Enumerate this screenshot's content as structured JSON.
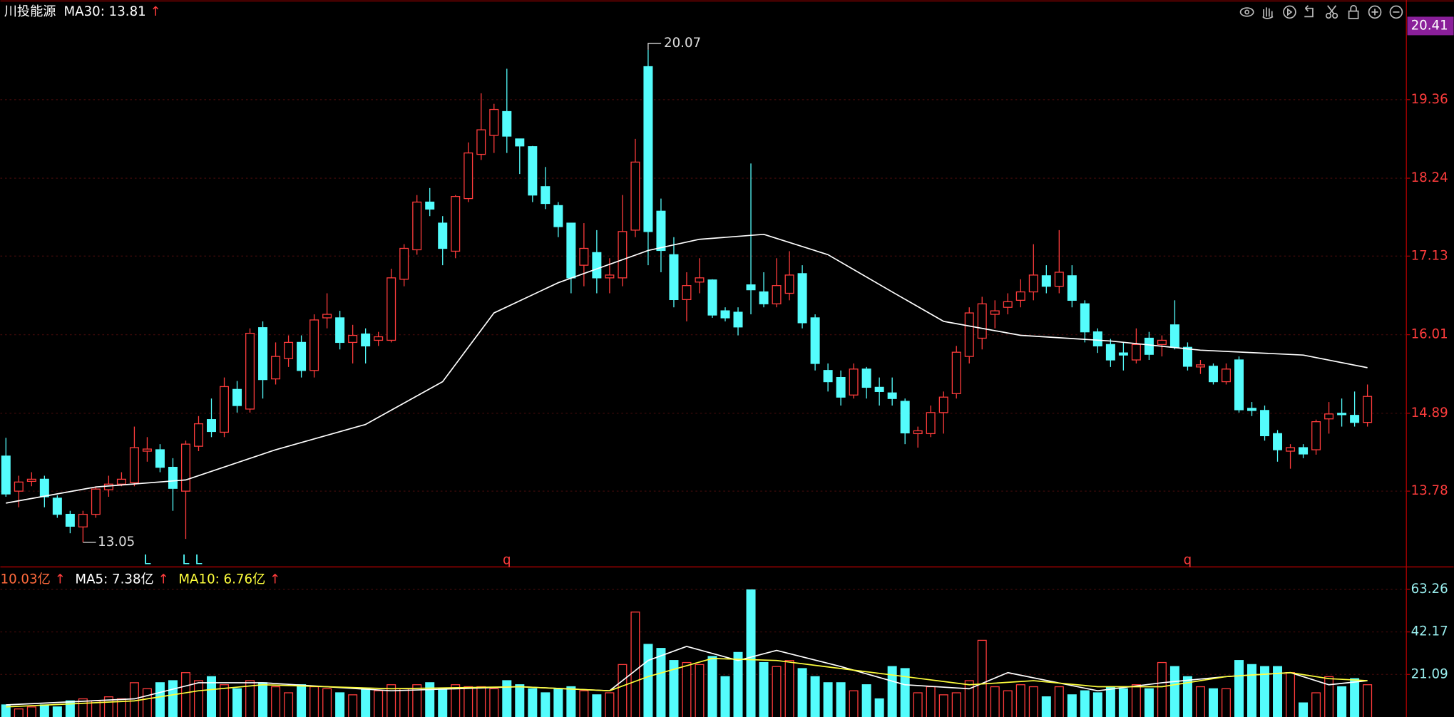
{
  "chart_data": [
    {
      "type": "candlestick",
      "title": "川投能源",
      "arrow": "↑",
      "up_color": "#ff3c3c",
      "down_color": "#54fcfc",
      "ylim": [
        12.7,
        20.78
      ],
      "yticks": [
        13.78,
        14.89,
        16.01,
        17.13,
        18.24,
        19.36
      ],
      "highlight_tick": 20.41,
      "grid": true,
      "ohlc": [
        [
          14.28,
          14.54,
          13.7,
          13.74
        ],
        [
          13.78,
          14.0,
          13.55,
          13.91
        ],
        [
          13.92,
          14.05,
          13.85,
          13.95
        ],
        [
          13.95,
          14.0,
          13.55,
          13.7
        ],
        [
          13.68,
          13.72,
          13.4,
          13.45
        ],
        [
          13.45,
          13.5,
          13.18,
          13.28
        ],
        [
          13.27,
          13.5,
          13.05,
          13.45
        ],
        [
          13.45,
          13.85,
          13.4,
          13.81
        ],
        [
          13.8,
          14.0,
          13.7,
          13.88
        ],
        [
          13.88,
          14.05,
          13.85,
          13.95
        ],
        [
          13.9,
          14.7,
          13.85,
          14.4
        ],
        [
          14.35,
          14.55,
          14.2,
          14.38
        ],
        [
          14.37,
          14.45,
          14.05,
          14.12
        ],
        [
          14.12,
          14.25,
          13.5,
          13.82
        ],
        [
          13.78,
          14.5,
          13.1,
          14.45
        ],
        [
          14.42,
          14.85,
          14.35,
          14.74
        ],
        [
          14.8,
          15.1,
          14.55,
          14.63
        ],
        [
          14.62,
          15.4,
          14.55,
          15.27
        ],
        [
          15.23,
          15.35,
          14.9,
          15.0
        ],
        [
          14.95,
          16.1,
          14.9,
          16.03
        ],
        [
          16.11,
          16.2,
          15.1,
          15.37
        ],
        [
          15.38,
          15.9,
          15.3,
          15.7
        ],
        [
          15.67,
          16.0,
          15.55,
          15.9
        ],
        [
          15.9,
          16.0,
          15.4,
          15.5
        ],
        [
          15.5,
          16.3,
          15.4,
          16.22
        ],
        [
          16.25,
          16.6,
          16.1,
          16.3
        ],
        [
          16.25,
          16.35,
          15.8,
          15.9
        ],
        [
          15.9,
          16.15,
          15.6,
          16.0
        ],
        [
          16.02,
          16.1,
          15.6,
          15.85
        ],
        [
          15.93,
          16.05,
          15.85,
          15.98
        ],
        [
          15.93,
          16.95,
          15.9,
          16.82
        ],
        [
          16.8,
          17.3,
          16.7,
          17.24
        ],
        [
          17.22,
          18.0,
          17.15,
          17.9
        ],
        [
          17.9,
          18.1,
          17.7,
          17.8
        ],
        [
          17.6,
          17.7,
          17.0,
          17.24
        ],
        [
          17.2,
          18.0,
          17.1,
          17.98
        ],
        [
          17.95,
          18.75,
          17.9,
          18.6
        ],
        [
          18.58,
          19.45,
          18.5,
          18.93
        ],
        [
          18.85,
          19.3,
          18.6,
          19.22
        ],
        [
          19.19,
          19.8,
          18.6,
          18.84
        ],
        [
          18.8,
          18.8,
          18.3,
          18.7
        ],
        [
          18.69,
          18.7,
          17.9,
          18.0
        ],
        [
          18.12,
          18.4,
          17.8,
          17.88
        ],
        [
          17.85,
          17.9,
          17.4,
          17.55
        ],
        [
          17.6,
          17.6,
          16.6,
          16.82
        ],
        [
          17.0,
          17.6,
          16.7,
          17.24
        ],
        [
          17.18,
          17.5,
          16.6,
          16.82
        ],
        [
          16.82,
          17.1,
          16.6,
          16.86
        ],
        [
          16.82,
          18.0,
          16.7,
          17.48
        ],
        [
          17.5,
          18.8,
          17.4,
          18.47
        ],
        [
          19.83,
          20.07,
          17.0,
          17.48
        ],
        [
          17.77,
          17.95,
          16.9,
          17.21
        ],
        [
          17.15,
          17.4,
          16.4,
          16.51
        ],
        [
          16.51,
          16.9,
          16.2,
          16.71
        ],
        [
          16.76,
          17.1,
          16.6,
          16.82
        ],
        [
          16.79,
          16.8,
          16.25,
          16.29
        ],
        [
          16.35,
          16.4,
          16.2,
          16.25
        ],
        [
          16.33,
          16.4,
          16.0,
          16.12
        ],
        [
          16.72,
          18.45,
          16.3,
          16.65
        ],
        [
          16.62,
          16.9,
          16.4,
          16.45
        ],
        [
          16.45,
          17.1,
          16.4,
          16.71
        ],
        [
          16.6,
          17.2,
          16.5,
          16.86
        ],
        [
          16.88,
          17.0,
          16.1,
          16.18
        ],
        [
          16.25,
          16.3,
          15.5,
          15.6
        ],
        [
          15.5,
          15.6,
          15.2,
          15.34
        ],
        [
          15.4,
          15.5,
          15.0,
          15.12
        ],
        [
          15.15,
          15.6,
          15.1,
          15.52
        ],
        [
          15.52,
          15.55,
          15.1,
          15.26
        ],
        [
          15.26,
          15.4,
          15.0,
          15.2
        ],
        [
          15.18,
          15.4,
          15.0,
          15.1
        ],
        [
          15.06,
          15.1,
          14.45,
          14.61
        ],
        [
          14.6,
          14.7,
          14.4,
          14.64
        ],
        [
          14.6,
          15.0,
          14.55,
          14.9
        ],
        [
          14.9,
          15.2,
          14.6,
          15.12
        ],
        [
          15.17,
          15.85,
          15.1,
          15.76
        ],
        [
          15.7,
          16.4,
          15.6,
          16.32
        ],
        [
          15.96,
          16.55,
          15.8,
          16.45
        ],
        [
          16.3,
          16.5,
          16.1,
          16.35
        ],
        [
          16.4,
          16.6,
          16.3,
          16.48
        ],
        [
          16.5,
          16.8,
          16.4,
          16.62
        ],
        [
          16.62,
          17.3,
          16.5,
          16.86
        ],
        [
          16.85,
          17.0,
          16.6,
          16.7
        ],
        [
          16.7,
          17.5,
          16.6,
          16.9
        ],
        [
          16.85,
          17.0,
          16.4,
          16.5
        ],
        [
          16.45,
          16.5,
          15.9,
          16.05
        ],
        [
          16.05,
          16.1,
          15.75,
          15.85
        ],
        [
          15.87,
          15.95,
          15.55,
          15.65
        ],
        [
          15.75,
          15.9,
          15.5,
          15.72
        ],
        [
          15.65,
          16.1,
          15.6,
          15.87
        ],
        [
          15.96,
          16.05,
          15.65,
          15.73
        ],
        [
          15.87,
          16.0,
          15.7,
          15.93
        ],
        [
          16.15,
          16.5,
          15.8,
          15.83
        ],
        [
          15.83,
          15.9,
          15.5,
          15.56
        ],
        [
          15.55,
          15.65,
          15.45,
          15.58
        ],
        [
          15.56,
          15.6,
          15.3,
          15.34
        ],
        [
          15.34,
          15.6,
          15.3,
          15.52
        ],
        [
          15.65,
          15.7,
          14.9,
          14.94
        ],
        [
          14.96,
          15.05,
          14.85,
          14.93
        ],
        [
          14.93,
          15.0,
          14.5,
          14.57
        ],
        [
          14.6,
          14.65,
          14.2,
          14.37
        ],
        [
          14.35,
          14.45,
          14.1,
          14.4
        ],
        [
          14.4,
          14.45,
          14.25,
          14.31
        ],
        [
          14.37,
          14.8,
          14.3,
          14.77
        ],
        [
          14.81,
          15.05,
          14.6,
          14.88
        ],
        [
          14.89,
          15.1,
          14.7,
          14.87
        ],
        [
          14.86,
          15.2,
          14.7,
          14.76
        ],
        [
          14.76,
          15.3,
          14.7,
          15.13
        ]
      ],
      "series": [
        {
          "name": "MA30: 13.81",
          "color": "#ffffff",
          "x": [
            0,
            7,
            14,
            21,
            28,
            34,
            38,
            43,
            50,
            54,
            59,
            64,
            69,
            73,
            79,
            86,
            93,
            101,
            106
          ],
          "values": [
            13.61,
            13.84,
            13.94,
            14.37,
            14.73,
            15.34,
            16.32,
            16.75,
            17.21,
            17.37,
            17.44,
            17.15,
            16.62,
            16.2,
            16.0,
            15.92,
            15.79,
            15.72,
            15.54
          ]
        }
      ],
      "signals": [
        {
          "label": "L",
          "index": 11,
          "color": "#54fcfc"
        },
        {
          "label": "L",
          "index": 14,
          "color": "#54fcfc"
        },
        {
          "label": "L",
          "index": 15,
          "color": "#54fcfc"
        },
        {
          "label": "q",
          "index": 39,
          "color": "#ff3c3c"
        },
        {
          "label": "q",
          "index": 92,
          "color": "#ff3c3c"
        }
      ]
    },
    {
      "type": "bar",
      "title": "10.03亿",
      "arrow": "↑",
      "ylim": [
        0,
        73
      ],
      "yticks": [
        21.09,
        42.17,
        63.26
      ],
      "values": [
        6,
        4,
        5,
        6,
        5,
        8,
        9,
        8,
        10,
        9,
        17,
        14,
        17,
        18,
        22,
        18,
        20,
        16,
        14,
        18,
        17,
        15,
        12,
        16,
        15,
        14,
        12,
        11,
        14,
        13,
        16,
        14,
        16,
        17,
        14,
        16,
        15,
        15,
        14,
        18,
        16,
        14,
        12,
        14,
        15,
        13,
        11,
        12,
        26,
        52,
        36,
        34,
        28,
        27,
        26,
        30,
        20,
        32,
        63,
        27,
        25,
        28,
        24,
        20,
        17,
        17,
        13,
        16,
        9,
        25,
        24,
        12,
        15,
        11,
        12,
        18,
        38,
        15,
        13,
        16,
        15,
        10,
        15,
        11,
        13,
        12,
        15,
        14,
        16,
        14,
        27,
        25,
        20,
        15,
        14,
        14,
        28,
        26,
        25,
        25,
        22,
        7,
        12,
        20,
        15,
        19,
        16
      ],
      "series": [
        {
          "name": "MA5: 7.38亿",
          "color": "#ffffff",
          "x": [
            0,
            10,
            15,
            20,
            30,
            40,
            47,
            50,
            53,
            57,
            60,
            65,
            70,
            75,
            78,
            85,
            90,
            95,
            100,
            103,
            106
          ],
          "values": [
            6,
            9,
            17,
            17,
            13,
            15,
            13,
            28,
            35,
            28,
            33,
            25,
            16,
            14,
            22,
            13,
            17,
            20,
            22,
            16,
            18
          ]
        },
        {
          "name": "MA10: 6.76亿",
          "color": "#ffff3c",
          "x": [
            0,
            10,
            15,
            20,
            30,
            40,
            47,
            50,
            55,
            60,
            65,
            70,
            75,
            80,
            85,
            90,
            95,
            100,
            103,
            106
          ],
          "values": [
            5,
            8,
            13,
            16,
            14,
            15,
            13,
            20,
            29,
            28,
            24,
            20,
            16,
            18,
            15,
            15,
            20,
            22,
            19,
            18
          ]
        }
      ]
    }
  ]
}
